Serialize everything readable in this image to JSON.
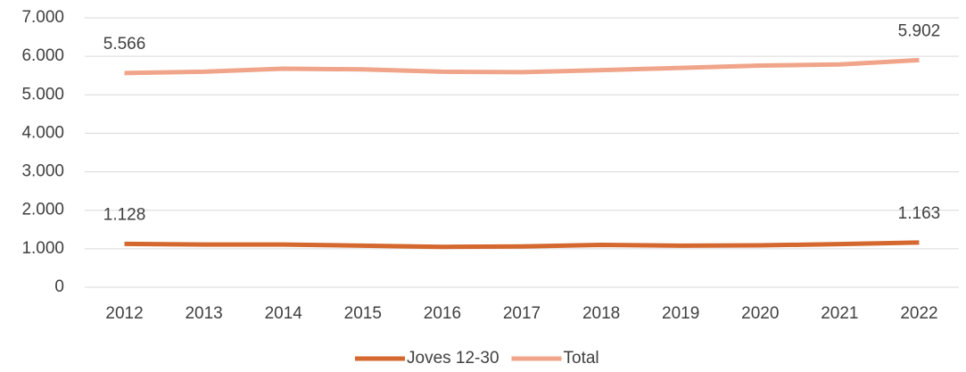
{
  "chart_data": {
    "type": "line",
    "categories": [
      "2012",
      "2013",
      "2014",
      "2015",
      "2016",
      "2017",
      "2018",
      "2019",
      "2020",
      "2021",
      "2022"
    ],
    "series": [
      {
        "name": "Joves 12-30",
        "color": "#d4682e",
        "values": [
          1128,
          1110,
          1110,
          1080,
          1050,
          1060,
          1100,
          1080,
          1090,
          1120,
          1163
        ],
        "value_labels": [
          "1.128",
          null,
          null,
          null,
          null,
          null,
          null,
          null,
          null,
          null,
          "1.163"
        ]
      },
      {
        "name": "Total",
        "color": "#f0a58a",
        "values": [
          5566,
          5600,
          5680,
          5660,
          5600,
          5590,
          5640,
          5700,
          5760,
          5790,
          5902
        ],
        "value_labels": [
          "5.566",
          null,
          null,
          null,
          null,
          null,
          null,
          null,
          null,
          null,
          "5.902"
        ]
      }
    ],
    "ylim": [
      0,
      7000
    ],
    "yticks": [
      0,
      {
        "value": 1000,
        "label": "1.000"
      },
      {
        "value": 2000,
        "label": "2.000"
      },
      {
        "value": 3000,
        "label": "3.000"
      },
      {
        "value": 4000,
        "label": "4.000"
      },
      {
        "value": 5000,
        "label": "5.000"
      },
      {
        "value": 6000,
        "label": "6.000"
      },
      {
        "value": 7000,
        "label": "7.000"
      }
    ],
    "grid": true,
    "legend": "bottom"
  }
}
